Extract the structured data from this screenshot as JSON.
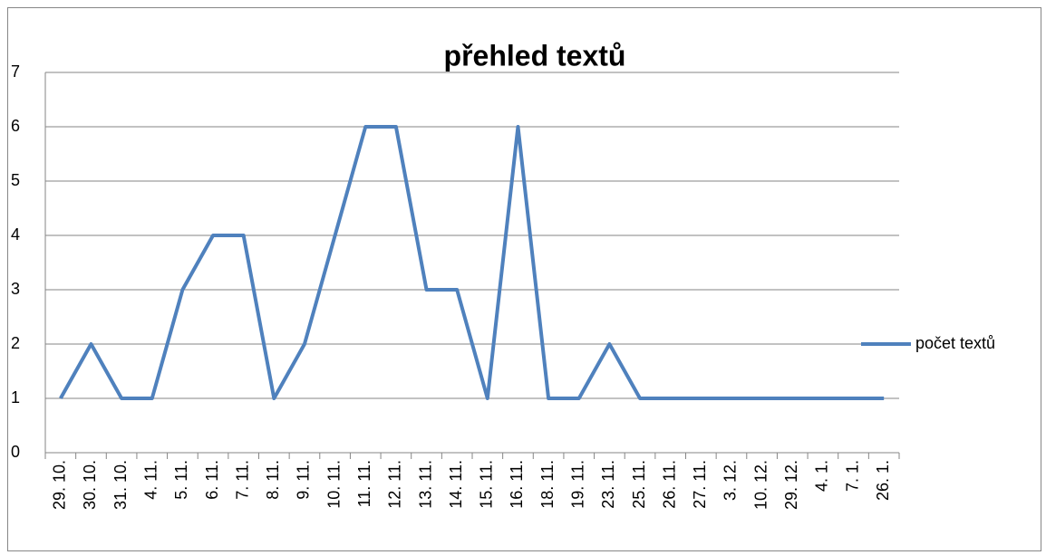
{
  "chart_data": {
    "type": "line",
    "title": "přehled textů",
    "categories": [
      "29. 10.",
      "30. 10.",
      "31. 10.",
      "4. 11.",
      "5. 11.",
      "6. 11.",
      "7. 11.",
      "8. 11.",
      "9. 11.",
      "10. 11.",
      "11. 11.",
      "12. 11.",
      "13. 11.",
      "14. 11.",
      "15. 11.",
      "16. 11.",
      "18. 11.",
      "19. 11.",
      "23. 11.",
      "25. 11.",
      "26. 11.",
      "27. 11.",
      "3. 12.",
      "10. 12.",
      "29. 12.",
      "4. 1.",
      "7. 1.",
      "26. 1."
    ],
    "series": [
      {
        "name": "počet textů",
        "color": "#4f81bd",
        "values": [
          1,
          2,
          1,
          1,
          3,
          4,
          4,
          1,
          2,
          4,
          6,
          6,
          3,
          3,
          1,
          6,
          1,
          1,
          2,
          1,
          1,
          1,
          1,
          1,
          1,
          1,
          1,
          1
        ]
      }
    ],
    "ylim": [
      0,
      7
    ],
    "yticks": [
      0,
      1,
      2,
      3,
      4,
      5,
      6,
      7
    ],
    "grid": true,
    "legend": "right"
  }
}
